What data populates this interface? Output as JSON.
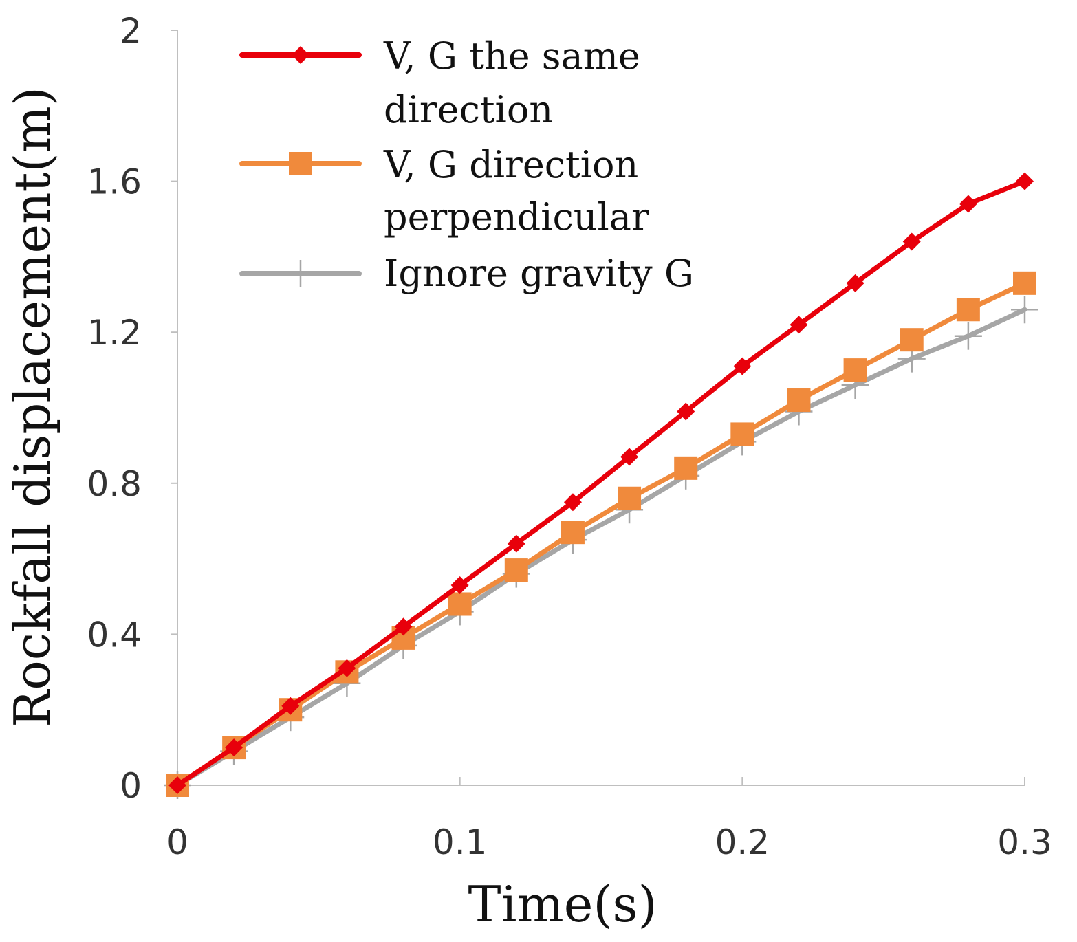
{
  "chart_data": {
    "type": "line",
    "title": "",
    "xlabel": "Time(s)",
    "ylabel": "Rockfall displacement(m)",
    "xlim": [
      0,
      0.3
    ],
    "ylim": [
      0,
      2
    ],
    "xticks": [
      0,
      0.1,
      0.2,
      0.3
    ],
    "xtick_labels": [
      "0",
      "0.1",
      "0.2",
      "0.3"
    ],
    "yticks": [
      0,
      0.4,
      0.8,
      1.2,
      1.6,
      2
    ],
    "ytick_labels": [
      "0",
      "0.4",
      "0.8",
      "1.2",
      "1.6",
      "2"
    ],
    "grid": false,
    "legend_position": "top-left",
    "x": [
      0,
      0.02,
      0.04,
      0.06,
      0.08,
      0.1,
      0.12,
      0.14,
      0.16,
      0.18,
      0.2,
      0.22,
      0.24,
      0.26,
      0.28,
      0.3
    ],
    "series": [
      {
        "name": "V, G the same direction",
        "legend_lines": [
          "V, G the same",
          "direction"
        ],
        "color": "#e8000b",
        "marker": "diamond",
        "values": [
          0,
          0.1,
          0.21,
          0.31,
          0.42,
          0.53,
          0.64,
          0.75,
          0.87,
          0.99,
          1.11,
          1.22,
          1.33,
          1.44,
          1.54,
          1.6
        ]
      },
      {
        "name": "V, G direction perpendicular",
        "legend_lines": [
          "V, G direction",
          "perpendicular"
        ],
        "color": "#f08a3c",
        "marker": "square",
        "values": [
          0,
          0.1,
          0.2,
          0.3,
          0.39,
          0.48,
          0.57,
          0.67,
          0.76,
          0.84,
          0.93,
          1.02,
          1.1,
          1.18,
          1.26,
          1.33
        ]
      },
      {
        "name": "Ignore gravity G",
        "legend_lines": [
          "Ignore gravity G"
        ],
        "color": "#a6a6a6",
        "marker": "plus",
        "values": [
          0,
          0.09,
          0.18,
          0.27,
          0.37,
          0.46,
          0.56,
          0.65,
          0.73,
          0.82,
          0.91,
          0.99,
          1.06,
          1.13,
          1.19,
          1.26
        ]
      }
    ]
  }
}
